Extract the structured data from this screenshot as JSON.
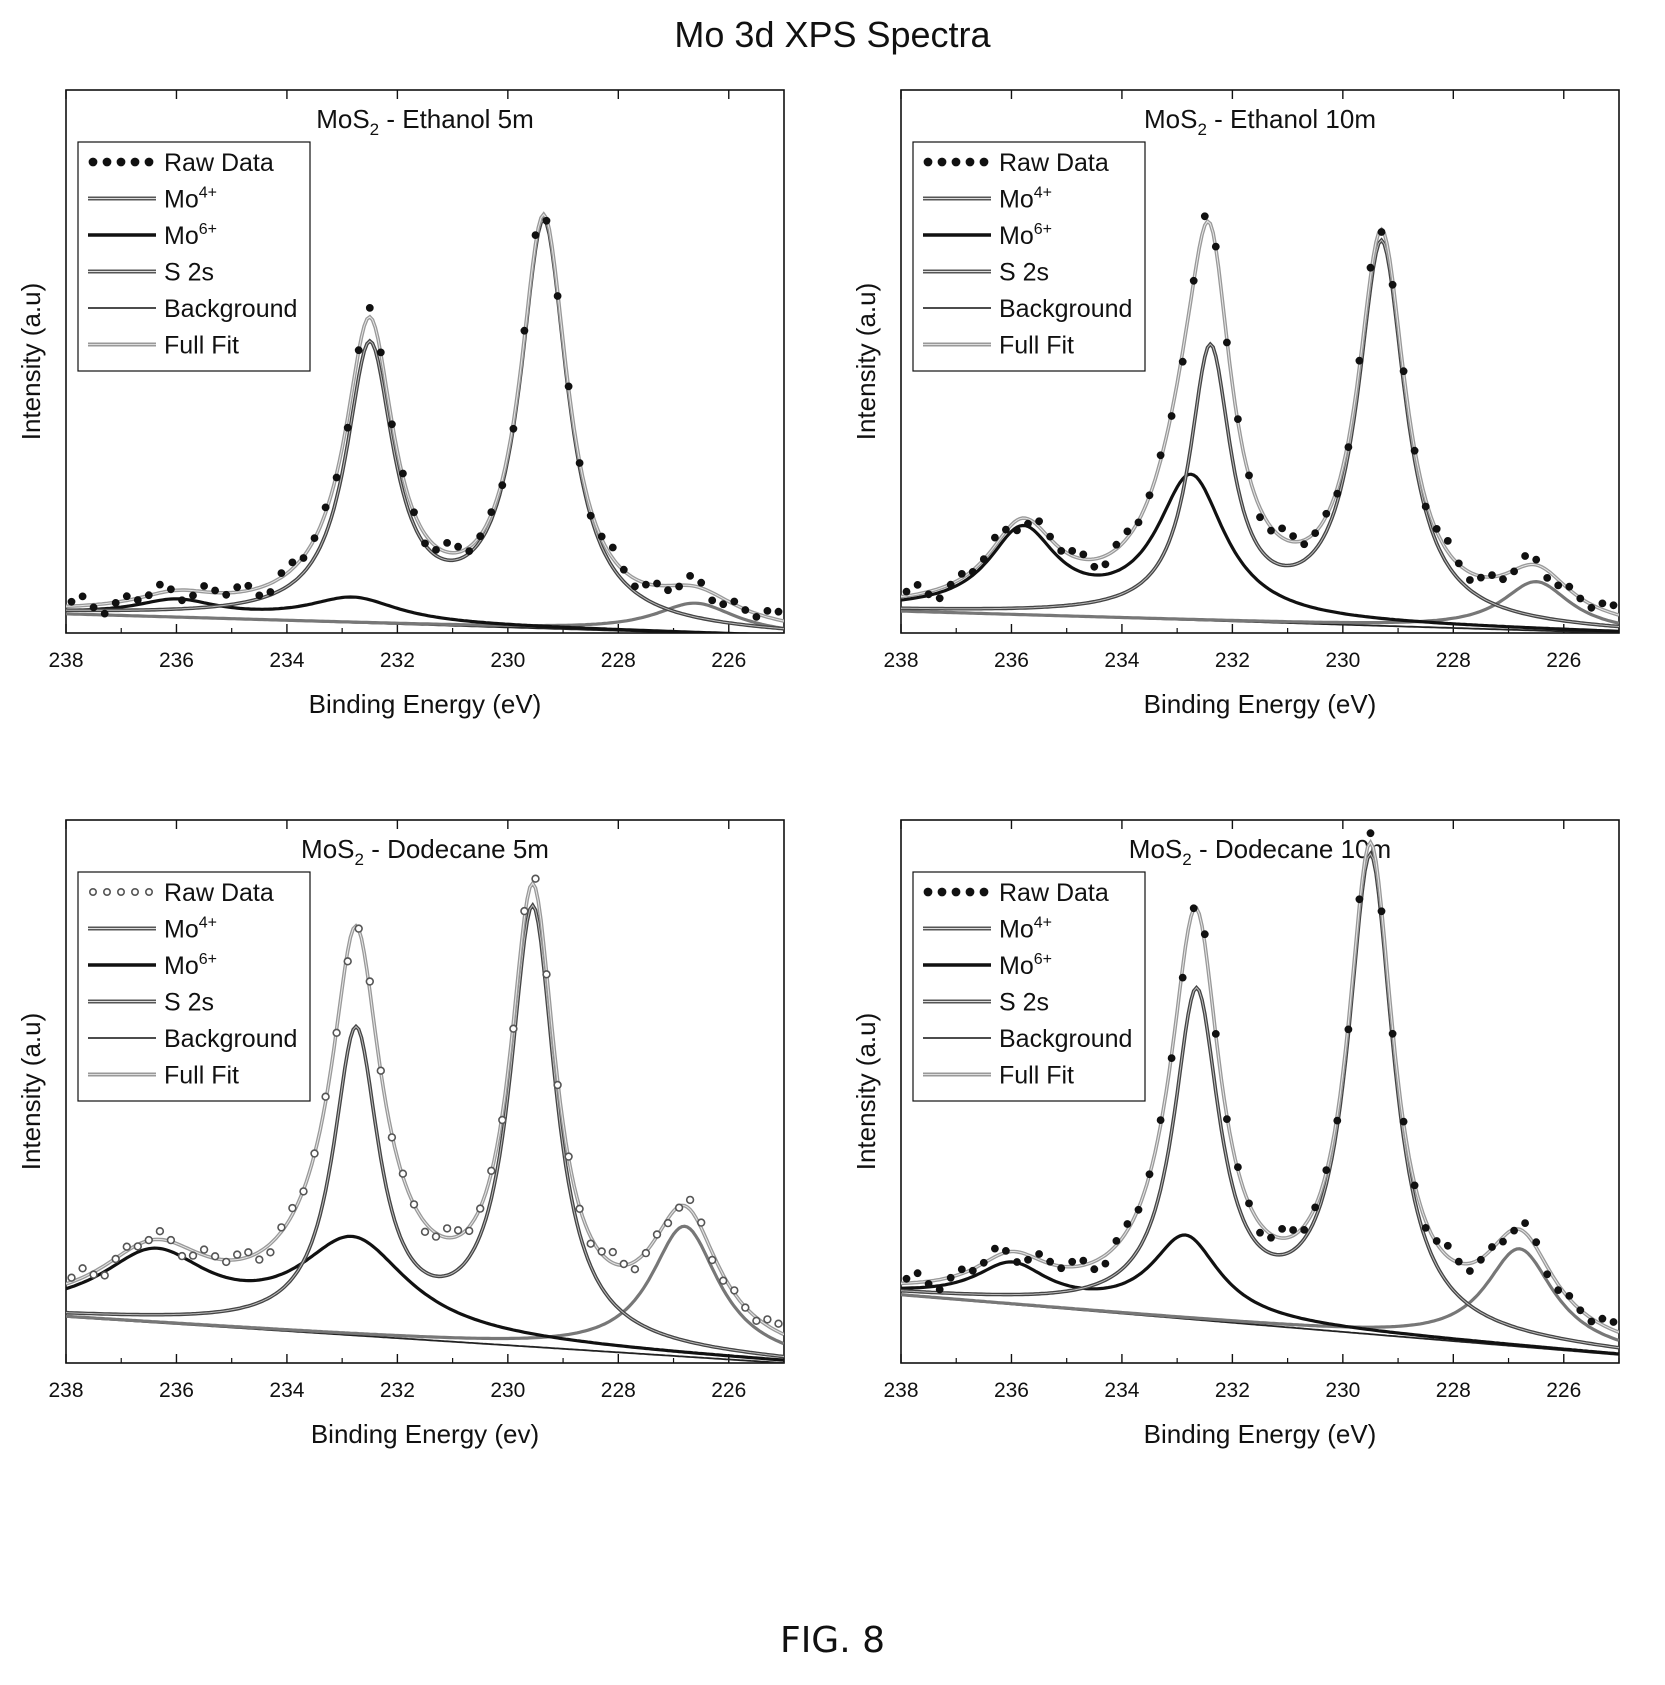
{
  "page": {
    "title": "Mo 3d XPS Spectra",
    "figure_label": "FIG. 8"
  },
  "chart_data": [
    {
      "type": "line",
      "title": "MoS2 - Ethanol 5m",
      "title_parts": [
        "MoS",
        "2",
        " - Ethanol 5m"
      ],
      "xlabel": "Binding Energy (eV)",
      "ylabel": "Intensity (a.u)",
      "xlim": [
        238,
        225
      ],
      "x_reversed": true,
      "ylim": [
        0,
        1
      ],
      "y_ticks_shown": false,
      "x_ticks": [
        238,
        236,
        234,
        232,
        230,
        228,
        226
      ],
      "legend_position": "top-left",
      "legend": [
        {
          "label": "Raw Data",
          "sup": "",
          "style": "dots"
        },
        {
          "label": "Mo",
          "sup": "4+",
          "style": "gray-double"
        },
        {
          "label": "Mo",
          "sup": "6+",
          "style": "thick"
        },
        {
          "label": "S 2s",
          "sup": "",
          "style": "gray-double"
        },
        {
          "label": "Background",
          "sup": "",
          "style": "thin"
        },
        {
          "label": "Full Fit",
          "sup": "",
          "style": "light-double"
        }
      ],
      "background": {
        "x": [
          238,
          225
        ],
        "y": [
          0.035,
          -0.005
        ]
      },
      "components": {
        "mo4": [
          {
            "x0": 229.35,
            "amp": 0.74,
            "w": 0.52
          },
          {
            "x0": 232.5,
            "amp": 0.5,
            "w": 0.52
          }
        ],
        "mo6": [
          {
            "x0": 232.8,
            "amp": 0.045,
            "w": 1.0
          },
          {
            "x0": 236.0,
            "amp": 0.03,
            "w": 0.9
          }
        ],
        "s2s": [
          {
            "x0": 226.6,
            "amp": 0.055,
            "w": 0.9
          }
        ]
      }
    },
    {
      "type": "line",
      "title": "MoS2 - Ethanol 10m",
      "title_parts": [
        "MoS",
        "2",
        " - Ethanol 10m"
      ],
      "xlabel": "Binding Energy (eV)",
      "ylabel": "Intensity (a.u)",
      "xlim": [
        238,
        225
      ],
      "x_reversed": true,
      "ylim": [
        0,
        1
      ],
      "y_ticks_shown": false,
      "x_ticks": [
        238,
        236,
        234,
        232,
        230,
        228,
        226
      ],
      "legend_position": "top-left",
      "legend": [
        {
          "label": "Raw Data",
          "sup": "",
          "style": "dots"
        },
        {
          "label": "Mo",
          "sup": "4+",
          "style": "gray-double"
        },
        {
          "label": "Mo",
          "sup": "6+",
          "style": "thick"
        },
        {
          "label": "S 2s",
          "sup": "",
          "style": "gray-double"
        },
        {
          "label": "Background",
          "sup": "",
          "style": "thin"
        },
        {
          "label": "Full Fit",
          "sup": "",
          "style": "light-double"
        }
      ],
      "background": {
        "x": [
          238,
          225
        ],
        "y": [
          0.04,
          0.0
        ]
      },
      "components": {
        "mo4": [
          {
            "x0": 229.3,
            "amp": 0.7,
            "w": 0.52
          },
          {
            "x0": 232.4,
            "amp": 0.49,
            "w": 0.45
          }
        ],
        "mo6": [
          {
            "x0": 232.75,
            "amp": 0.26,
            "w": 0.75
          },
          {
            "x0": 235.8,
            "amp": 0.15,
            "w": 0.75
          }
        ],
        "s2s": [
          {
            "x0": 226.5,
            "amp": 0.09,
            "w": 0.75
          }
        ]
      }
    },
    {
      "type": "line",
      "title": "MoS2 - Dodecane 5m",
      "title_parts": [
        "MoS",
        "2",
        " - Dodecane 5m"
      ],
      "xlabel": "Binding Energy (ev)",
      "ylabel": "Intensity (a.u)",
      "xlim": [
        238,
        225
      ],
      "x_reversed": true,
      "ylim": [
        0,
        1
      ],
      "y_ticks_shown": false,
      "x_ticks": [
        238,
        236,
        234,
        232,
        230,
        228,
        226
      ],
      "legend_position": "top-left",
      "legend": [
        {
          "label": "Raw Data",
          "sup": "",
          "style": "open-dots"
        },
        {
          "label": "Mo",
          "sup": "4+",
          "style": "gray-double"
        },
        {
          "label": "Mo",
          "sup": "6+",
          "style": "thick"
        },
        {
          "label": "S 2s",
          "sup": "",
          "style": "gray-double"
        },
        {
          "label": "Background",
          "sup": "",
          "style": "thin"
        },
        {
          "label": "Full Fit",
          "sup": "",
          "style": "light-double"
        }
      ],
      "background": {
        "x": [
          238,
          225
        ],
        "y": [
          0.085,
          0.0
        ]
      },
      "components": {
        "mo4": [
          {
            "x0": 229.55,
            "amp": 0.8,
            "w": 0.5
          },
          {
            "x0": 232.75,
            "amp": 0.55,
            "w": 0.5
          }
        ],
        "mo6": [
          {
            "x0": 232.8,
            "amp": 0.17,
            "w": 1.2
          },
          {
            "x0": 236.4,
            "amp": 0.12,
            "w": 1.2
          }
        ],
        "s2s": [
          {
            "x0": 226.8,
            "amp": 0.24,
            "w": 0.75
          }
        ]
      }
    },
    {
      "type": "line",
      "title": "MoS2 - Dodecane 10m",
      "title_parts": [
        "MoS",
        "2",
        " - Dodecane 10m"
      ],
      "xlabel": "Binding Energy (eV)",
      "ylabel": "Intensity (a.u)",
      "xlim": [
        238,
        225
      ],
      "x_reversed": true,
      "ylim": [
        0,
        1
      ],
      "y_ticks_shown": false,
      "x_ticks": [
        238,
        236,
        234,
        232,
        230,
        228,
        226
      ],
      "legend_position": "top-left",
      "legend": [
        {
          "label": "Raw Data",
          "sup": "",
          "style": "dots"
        },
        {
          "label": "Mo",
          "sup": "4+",
          "style": "gray-double"
        },
        {
          "label": "Mo",
          "sup": "6+",
          "style": "thick"
        },
        {
          "label": "S 2s",
          "sup": "",
          "style": "gray-double"
        },
        {
          "label": "Background",
          "sup": "",
          "style": "thin"
        },
        {
          "label": "Full Fit",
          "sup": "",
          "style": "light-double"
        }
      ],
      "background": {
        "x": [
          238,
          225
        ],
        "y": [
          0.125,
          0.015
        ]
      },
      "components": {
        "mo4": [
          {
            "x0": 229.5,
            "amp": 0.87,
            "w": 0.5
          },
          {
            "x0": 232.65,
            "amp": 0.59,
            "w": 0.5
          }
        ],
        "mo6": [
          {
            "x0": 232.85,
            "amp": 0.15,
            "w": 0.75
          },
          {
            "x0": 236.0,
            "amp": 0.07,
            "w": 0.8
          }
        ],
        "s2s": [
          {
            "x0": 226.8,
            "amp": 0.18,
            "w": 0.75
          }
        ]
      }
    }
  ]
}
